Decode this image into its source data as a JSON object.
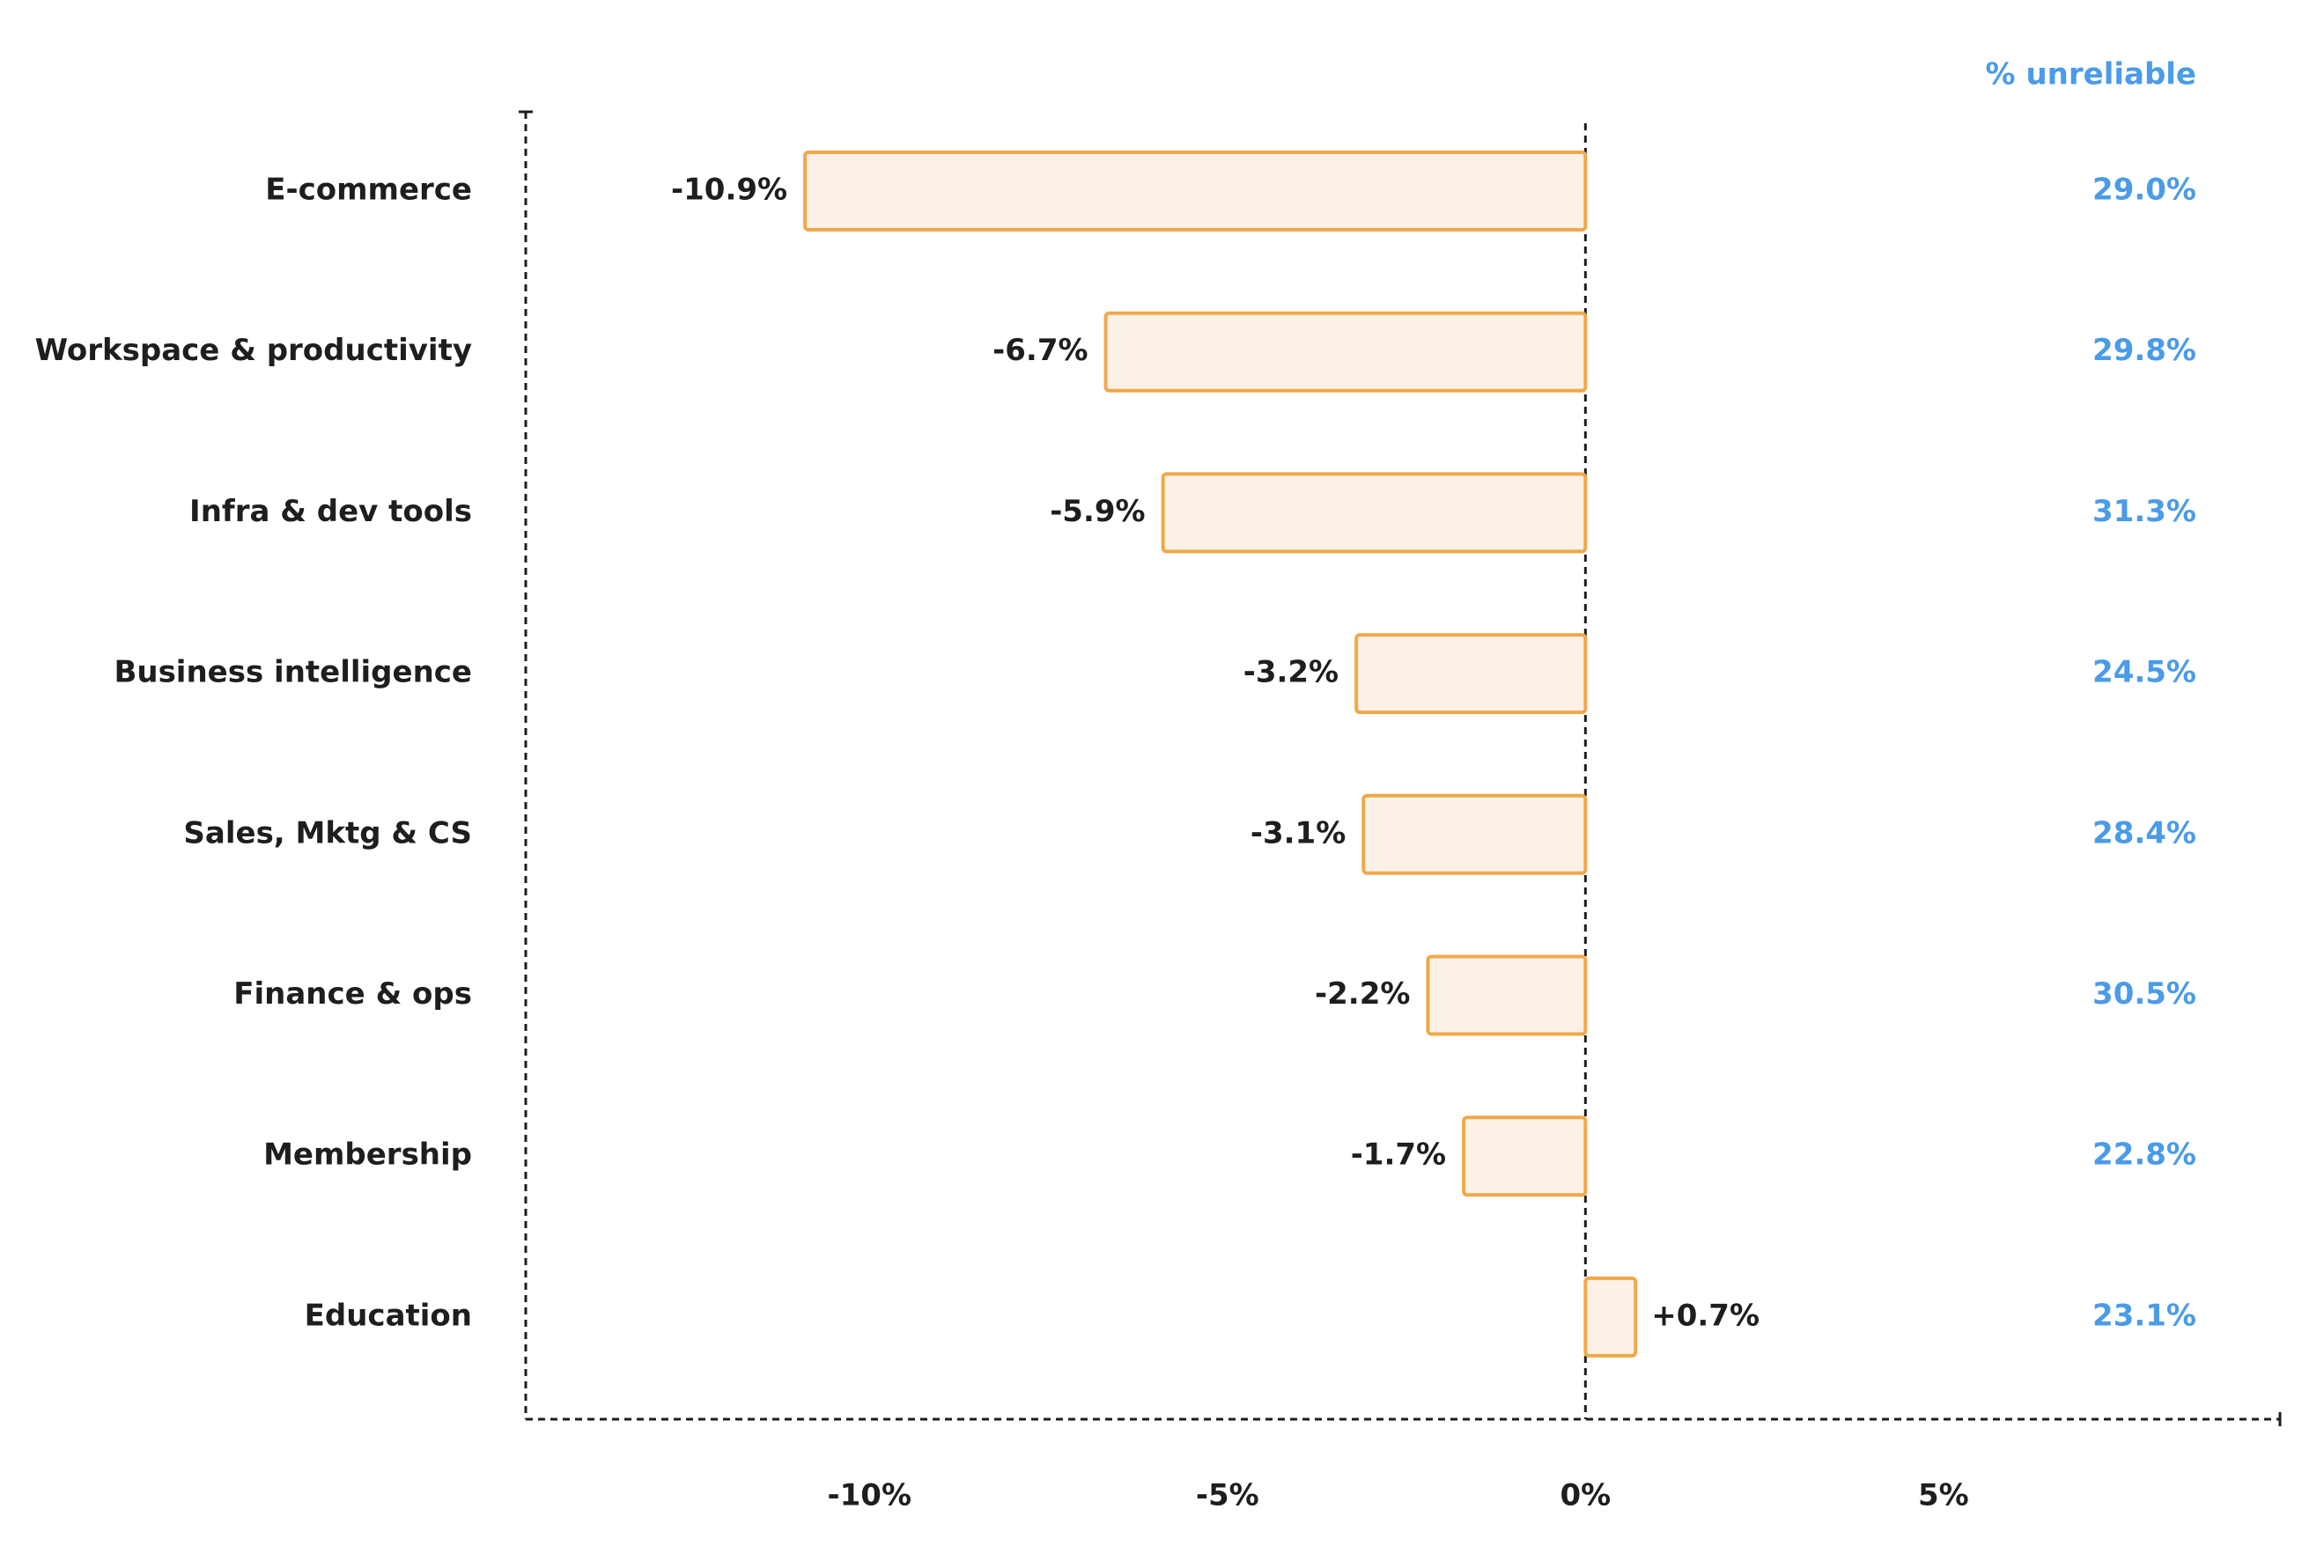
{
  "chart_data": {
    "type": "bar",
    "orientation": "horizontal",
    "categories": [
      "E-commerce",
      "Workspace & productivity",
      "Infra & dev tools",
      "Business intelligence",
      "Sales, Mktg & CS",
      "Finance & ops",
      "Membership",
      "Education"
    ],
    "values": [
      -10.9,
      -6.7,
      -5.9,
      -3.2,
      -3.1,
      -2.2,
      -1.7,
      0.7
    ],
    "value_labels": [
      "-10.9%",
      "-6.7%",
      "-5.9%",
      "-3.2%",
      "-3.1%",
      "-2.2%",
      "-1.7%",
      "+0.7%"
    ],
    "color": "#fbf1e6",
    "edge_color": "#f0a84a",
    "xlim": [
      -14.8,
      9.7
    ],
    "xticks": [
      {
        "value": -10,
        "label": "-10%"
      },
      {
        "value": -5,
        "label": "-5%"
      },
      {
        "value": 0,
        "label": "0%"
      },
      {
        "value": 5,
        "label": "5%"
      }
    ],
    "unreliable": {
      "title": "% unreliable",
      "values": [
        29.0,
        29.8,
        31.3,
        24.5,
        28.4,
        30.5,
        22.8,
        23.1
      ],
      "value_labels": [
        "29.0%",
        "29.8%",
        "31.3%",
        "24.5%",
        "28.4%",
        "30.5%",
        "22.8%",
        "23.1%"
      ],
      "color": "#4a9be8"
    }
  }
}
